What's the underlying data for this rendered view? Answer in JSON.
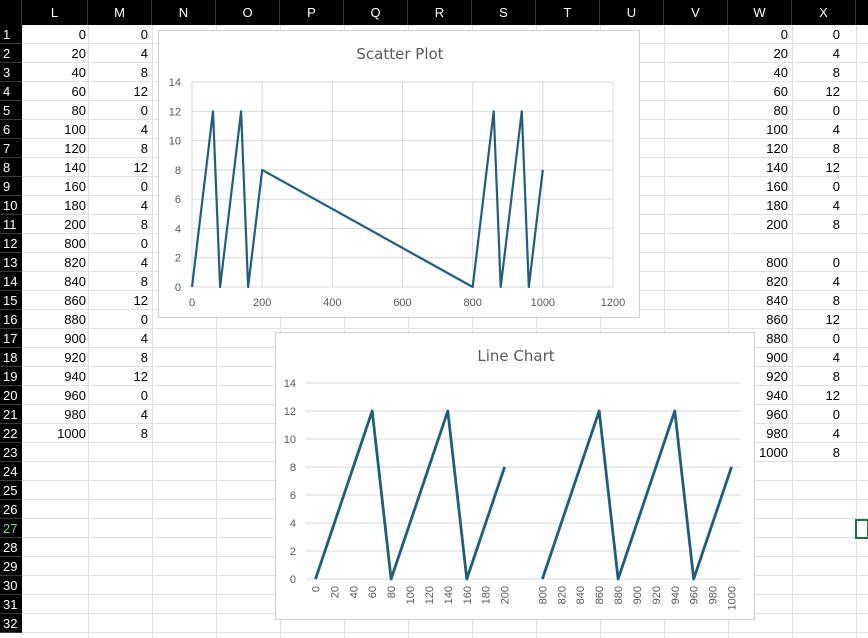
{
  "columns": [
    "L",
    "M",
    "N",
    "O",
    "P",
    "Q",
    "R",
    "S",
    "T",
    "U",
    "V",
    "W",
    "X"
  ],
  "rows": [
    1,
    2,
    3,
    4,
    5,
    6,
    7,
    8,
    9,
    10,
    11,
    12,
    13,
    14,
    15,
    16,
    17,
    18,
    19,
    20,
    21,
    22,
    23,
    24,
    25,
    26,
    27,
    28,
    29,
    30,
    31,
    32
  ],
  "selected_row": 27,
  "col_L": [
    "0",
    "20",
    "40",
    "60",
    "80",
    "100",
    "120",
    "140",
    "160",
    "180",
    "200",
    "800",
    "820",
    "840",
    "860",
    "880",
    "900",
    "920",
    "940",
    "960",
    "980",
    "1000"
  ],
  "col_M": [
    "0",
    "4",
    "8",
    "12",
    "0",
    "4",
    "8",
    "12",
    "0",
    "4",
    "8",
    "0",
    "4",
    "8",
    "12",
    "0",
    "4",
    "8",
    "12",
    "0",
    "4",
    "8"
  ],
  "col_W": [
    "0",
    "20",
    "40",
    "60",
    "80",
    "100",
    "120",
    "140",
    "160",
    "180",
    "200",
    "",
    "800",
    "820",
    "840",
    "860",
    "880",
    "900",
    "920",
    "940",
    "960",
    "980",
    "1000"
  ],
  "col_X": [
    "0",
    "4",
    "8",
    "12",
    "0",
    "4",
    "8",
    "12",
    "0",
    "4",
    "8",
    "",
    "0",
    "4",
    "8",
    "12",
    "0",
    "4",
    "8",
    "12",
    "0",
    "4",
    "8"
  ],
  "colors": {
    "series": "#1f5f7a",
    "grid": "#d9d9d9",
    "header_bg": "#000000",
    "active_border": "#217346"
  },
  "chart_data": [
    {
      "type": "scatter",
      "title": "Scatter Plot",
      "x": [
        0,
        20,
        40,
        60,
        80,
        100,
        120,
        140,
        160,
        180,
        200,
        800,
        820,
        840,
        860,
        880,
        900,
        920,
        940,
        960,
        980,
        1000
      ],
      "y": [
        0,
        4,
        8,
        12,
        0,
        4,
        8,
        12,
        0,
        4,
        8,
        0,
        4,
        8,
        12,
        0,
        4,
        8,
        12,
        0,
        4,
        8
      ],
      "xlim": [
        0,
        1200
      ],
      "ylim": [
        0,
        14
      ],
      "xticks": [
        "0",
        "200",
        "400",
        "600",
        "800",
        "1000",
        "1200"
      ],
      "yticks": [
        "0",
        "2",
        "4",
        "6",
        "8",
        "10",
        "12",
        "14"
      ],
      "grid": true
    },
    {
      "type": "line",
      "title": "Line Chart",
      "categories": [
        "0",
        "20",
        "40",
        "60",
        "80",
        "100",
        "120",
        "140",
        "160",
        "180",
        "200",
        "",
        "800",
        "820",
        "840",
        "860",
        "880",
        "900",
        "920",
        "940",
        "960",
        "980",
        "1000"
      ],
      "values": [
        0,
        4,
        8,
        12,
        0,
        4,
        8,
        12,
        0,
        4,
        8,
        null,
        0,
        4,
        8,
        12,
        0,
        4,
        8,
        12,
        0,
        4,
        8
      ],
      "ylim": [
        0,
        14
      ],
      "yticks": [
        "0",
        "2",
        "4",
        "6",
        "8",
        "10",
        "12",
        "14"
      ],
      "grid": true
    }
  ]
}
